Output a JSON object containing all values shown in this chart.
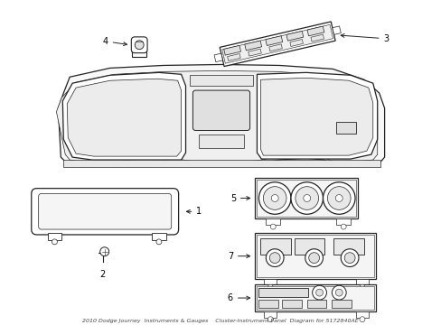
{
  "title": "2010 Dodge Journey Instruments & Gauges",
  "subtitle": "Cluster-Instrument Panel",
  "part_number": "5172840AE",
  "background_color": "#ffffff",
  "line_color": "#222222",
  "label_color": "#000000",
  "fig_width": 4.89,
  "fig_height": 3.6,
  "dpi": 100
}
